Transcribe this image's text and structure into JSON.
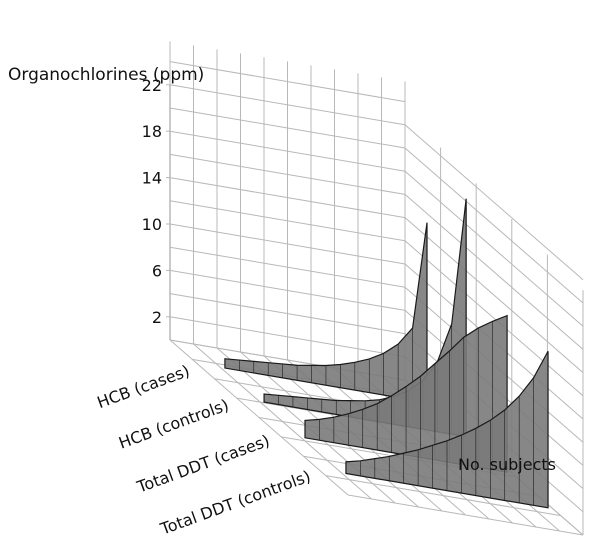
{
  "chart_data": {
    "type": "area",
    "subtype": "3d-stacked-ribbons",
    "title": "",
    "ylabel": "Organochlorines (ppm)",
    "xlabel": "No. subjects",
    "y_ticks": [
      2,
      6,
      10,
      14,
      18,
      22
    ],
    "ylim": [
      0,
      22
    ],
    "grid": true,
    "legend": "none",
    "colors": {
      "fill": "#7a7a7a",
      "edge": "#1a1a1a",
      "grid": "#b8b8b8",
      "text": "#111111"
    },
    "series": [
      {
        "name": "HCB (cases)",
        "values": [
          0.8,
          0.9,
          1.0,
          1.1,
          1.2,
          1.3,
          1.5,
          1.7,
          2.0,
          2.4,
          2.9,
          3.6,
          4.6,
          6.2,
          15.5
        ]
      },
      {
        "name": "HCB (controls)",
        "values": [
          0.7,
          0.8,
          0.9,
          1.0,
          1.1,
          1.2,
          1.4,
          1.6,
          1.9,
          2.4,
          3.1,
          4.2,
          6.0,
          9.5,
          20.5
        ]
      },
      {
        "name": "Total DDT (cases)",
        "values": [
          1.5,
          1.8,
          2.2,
          2.7,
          3.3,
          4.0,
          4.9,
          5.9,
          7.0,
          8.3,
          9.6,
          11.0,
          12.0,
          12.8,
          13.5
        ]
      },
      {
        "name": "Total DDT (controls)",
        "values": [
          1.0,
          1.3,
          1.7,
          2.1,
          2.6,
          3.1,
          3.7,
          4.3,
          5.0,
          5.8,
          6.7,
          7.8,
          9.2,
          11.0,
          13.5
        ]
      }
    ]
  }
}
